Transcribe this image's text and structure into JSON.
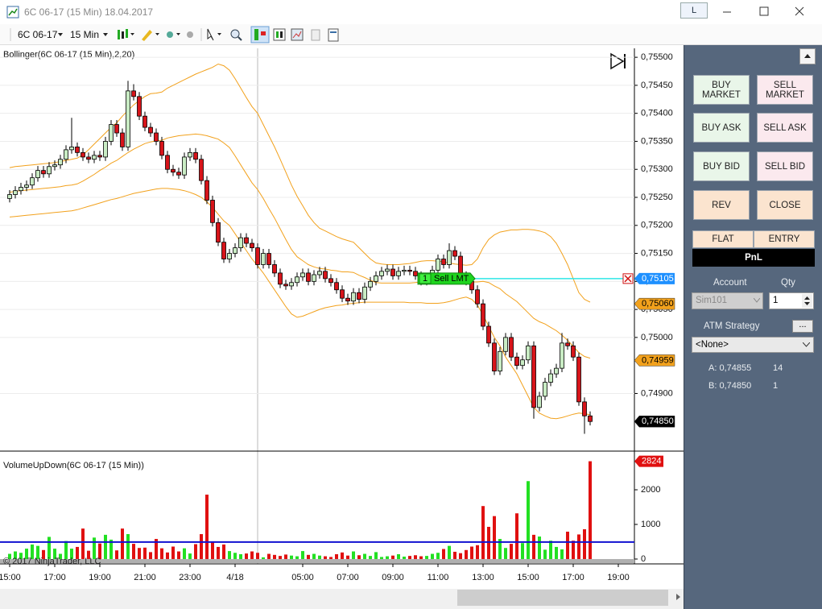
{
  "window": {
    "title": "6C 06-17 (15 Min)",
    "date": "18.04.2017",
    "link_button": "L"
  },
  "toolbar": {
    "instrument": "6C 06-17",
    "interval": "15 Min"
  },
  "copyright": "© 2017 NinjaTrader, LLC",
  "chart_data": [
    {
      "type": "candlestick",
      "title": "Bollinger(6C 06-17 (15 Min),2,20)",
      "up_color": "#c9ecc4",
      "down_color": "#d7141a",
      "band_color": "#f2a11c",
      "grid": true,
      "xlim": [
        -1.714,
        110.857
      ],
      "ylim": [
        0.748,
        0.75516
      ],
      "yticks": [
        {
          "value": 0.755,
          "label": "0,75500"
        },
        {
          "value": 0.7545,
          "label": "0,75450"
        },
        {
          "value": 0.754,
          "label": "0,75400"
        },
        {
          "value": 0.7535,
          "label": "0,75350"
        },
        {
          "value": 0.753,
          "label": "0,75300"
        },
        {
          "value": 0.7525,
          "label": "0,75250"
        },
        {
          "value": 0.752,
          "label": "0,75200"
        },
        {
          "value": 0.7515,
          "label": "0,75150"
        },
        {
          "value": 0.751,
          "label": "0,75100"
        },
        {
          "value": 0.7505,
          "label": "0,75050"
        },
        {
          "value": 0.75,
          "label": "0,75000"
        },
        {
          "value": 0.749,
          "label": "0,74900"
        }
      ],
      "open": [
        0.75248,
        0.75255,
        0.75262,
        0.75268,
        0.75272,
        0.75285,
        0.75298,
        0.75292,
        0.75305,
        0.75308,
        0.75318,
        0.75335,
        0.7534,
        0.7533,
        0.75322,
        0.75318,
        0.75325,
        0.75322,
        0.7535,
        0.7538,
        0.75365,
        0.7534,
        0.7544,
        0.7543,
        0.75395,
        0.75375,
        0.75365,
        0.7535,
        0.75325,
        0.753,
        0.75295,
        0.7529,
        0.75322,
        0.7533,
        0.75318,
        0.7528,
        0.75245,
        0.75205,
        0.7517,
        0.7514,
        0.7515,
        0.7516,
        0.75178,
        0.75168,
        0.7516,
        0.7513,
        0.7515,
        0.7513,
        0.75115,
        0.75095,
        0.75092,
        0.75098,
        0.75108,
        0.75115,
        0.751,
        0.75112,
        0.75118,
        0.75105,
        0.75098,
        0.75085,
        0.7507,
        0.75065,
        0.7508,
        0.75068,
        0.7509,
        0.751,
        0.7511,
        0.75118,
        0.75122,
        0.7511,
        0.75118,
        0.7512,
        0.75118,
        0.7511,
        0.751,
        0.75105,
        0.7512,
        0.7514,
        0.7513,
        0.75155,
        0.75145,
        0.7511,
        0.751,
        0.75085,
        0.7506,
        0.7502,
        0.7499,
        0.7494,
        0.74975,
        0.75,
        0.74965,
        0.7495,
        0.7496,
        0.74985,
        0.74875,
        0.74895,
        0.7492,
        0.74935,
        0.74945,
        0.7499,
        0.74985,
        0.74965,
        0.74885,
        0.7486
      ],
      "high": [
        0.75263,
        0.7527,
        0.75276,
        0.7528,
        0.75293,
        0.75306,
        0.75306,
        0.75313,
        0.75316,
        0.75326,
        0.75343,
        0.75392,
        0.75348,
        0.75338,
        0.7533,
        0.75333,
        0.75333,
        0.75358,
        0.75388,
        0.75388,
        0.75373,
        0.75458,
        0.75452,
        0.75438,
        0.75403,
        0.75383,
        0.75373,
        0.75358,
        0.75333,
        0.75308,
        0.75303,
        0.7533,
        0.75338,
        0.75338,
        0.75326,
        0.75288,
        0.75253,
        0.75213,
        0.75178,
        0.75158,
        0.75168,
        0.75186,
        0.75186,
        0.75176,
        0.75168,
        0.75158,
        0.75158,
        0.75138,
        0.75123,
        0.75103,
        0.75106,
        0.75116,
        0.75123,
        0.75123,
        0.7512,
        0.75126,
        0.75126,
        0.75113,
        0.75106,
        0.75093,
        0.75078,
        0.75088,
        0.75088,
        0.75098,
        0.75108,
        0.75118,
        0.75126,
        0.7513,
        0.7513,
        0.75126,
        0.75128,
        0.75128,
        0.75126,
        0.75118,
        0.75113,
        0.75128,
        0.75148,
        0.75148,
        0.75168,
        0.75163,
        0.75153,
        0.75118,
        0.75108,
        0.75093,
        0.75068,
        0.75028,
        0.74998,
        0.74983,
        0.75008,
        0.75008,
        0.74973,
        0.74968,
        0.74993,
        0.74993,
        0.74903,
        0.74928,
        0.74943,
        0.74953,
        0.75008,
        0.74998,
        0.74993,
        0.74973,
        0.74893,
        0.74868
      ],
      "low": [
        0.75241,
        0.75248,
        0.75255,
        0.75261,
        0.75265,
        0.75278,
        0.75285,
        0.75285,
        0.75298,
        0.75301,
        0.75311,
        0.75328,
        0.75323,
        0.75315,
        0.75311,
        0.75311,
        0.75315,
        0.75315,
        0.75343,
        0.75358,
        0.75333,
        0.75333,
        0.75423,
        0.75388,
        0.75368,
        0.75358,
        0.75343,
        0.75318,
        0.75293,
        0.75288,
        0.75283,
        0.75283,
        0.75315,
        0.75311,
        0.75273,
        0.75238,
        0.75198,
        0.75163,
        0.75133,
        0.75133,
        0.75143,
        0.75153,
        0.75161,
        0.75153,
        0.75123,
        0.75123,
        0.75123,
        0.75108,
        0.75088,
        0.75085,
        0.75085,
        0.75091,
        0.75101,
        0.75093,
        0.75093,
        0.75105,
        0.75098,
        0.75091,
        0.75078,
        0.75063,
        0.75058,
        0.75058,
        0.75061,
        0.75061,
        0.75083,
        0.75093,
        0.75103,
        0.75111,
        0.75103,
        0.75103,
        0.75111,
        0.75111,
        0.75103,
        0.75093,
        0.75093,
        0.75098,
        0.75113,
        0.75123,
        0.75123,
        0.75138,
        0.75103,
        0.75093,
        0.75078,
        0.75053,
        0.75013,
        0.74983,
        0.74933,
        0.74933,
        0.74968,
        0.74958,
        0.74943,
        0.74943,
        0.74953,
        0.74855,
        0.74868,
        0.74888,
        0.74913,
        0.74928,
        0.74938,
        0.74978,
        0.74958,
        0.74878,
        0.74828,
        0.74843
      ],
      "close": [
        0.75255,
        0.75262,
        0.75268,
        0.75272,
        0.75285,
        0.75298,
        0.75292,
        0.75305,
        0.75308,
        0.75318,
        0.75335,
        0.7534,
        0.7533,
        0.75322,
        0.75318,
        0.75325,
        0.75322,
        0.7535,
        0.7538,
        0.75365,
        0.7534,
        0.7544,
        0.7543,
        0.75395,
        0.75375,
        0.75365,
        0.7535,
        0.75325,
        0.753,
        0.75295,
        0.7529,
        0.75322,
        0.7533,
        0.75318,
        0.7528,
        0.75245,
        0.75205,
        0.7517,
        0.7514,
        0.7515,
        0.7516,
        0.75178,
        0.75168,
        0.7516,
        0.7513,
        0.7515,
        0.7513,
        0.75115,
        0.75095,
        0.75092,
        0.75098,
        0.75108,
        0.75115,
        0.751,
        0.75112,
        0.75118,
        0.75105,
        0.75098,
        0.75085,
        0.7507,
        0.75065,
        0.7508,
        0.75068,
        0.7509,
        0.751,
        0.7511,
        0.75118,
        0.75122,
        0.7511,
        0.75118,
        0.7512,
        0.75118,
        0.7511,
        0.751,
        0.75105,
        0.7512,
        0.7514,
        0.7513,
        0.75155,
        0.75145,
        0.7511,
        0.751,
        0.75085,
        0.7506,
        0.7502,
        0.7499,
        0.7494,
        0.74975,
        0.75,
        0.74965,
        0.7495,
        0.7496,
        0.74985,
        0.74875,
        0.74895,
        0.7492,
        0.74935,
        0.74945,
        0.7499,
        0.74985,
        0.74965,
        0.74885,
        0.7486,
        0.7485
      ],
      "upper": [
        0.75303,
        0.75305,
        0.75306,
        0.75307,
        0.75308,
        0.75309,
        0.7531,
        0.75311,
        0.75312,
        0.75314,
        0.75316,
        0.75318,
        0.7532,
        0.75326,
        0.75335,
        0.75345,
        0.75355,
        0.75365,
        0.75375,
        0.75383,
        0.75395,
        0.75405,
        0.75415,
        0.75423,
        0.7543,
        0.75435,
        0.75436,
        0.75438,
        0.75445,
        0.7545,
        0.75455,
        0.7546,
        0.75465,
        0.7547,
        0.75474,
        0.75478,
        0.75482,
        0.75488,
        0.75485,
        0.75477,
        0.75462,
        0.75445,
        0.75428,
        0.75412,
        0.754,
        0.7538,
        0.7536,
        0.7534,
        0.75318,
        0.75295,
        0.75272,
        0.75252,
        0.75235,
        0.75218,
        0.75205,
        0.75195,
        0.7519,
        0.75185,
        0.7518,
        0.75176,
        0.75173,
        0.7517,
        0.7516,
        0.7515,
        0.7514,
        0.75133,
        0.75131,
        0.7513,
        0.7513,
        0.7513,
        0.75131,
        0.75132,
        0.75134,
        0.75136,
        0.75137,
        0.75137,
        0.75136,
        0.75135,
        0.75133,
        0.75131,
        0.7513,
        0.75129,
        0.7513,
        0.7514,
        0.7516,
        0.75175,
        0.75183,
        0.75188,
        0.7519,
        0.75192,
        0.75192,
        0.75193,
        0.75193,
        0.75192,
        0.7519,
        0.75187,
        0.7518,
        0.75168,
        0.7515,
        0.7513,
        0.75105,
        0.7508,
        0.75068,
        0.75063
      ],
      "middle": [
        0.75259,
        0.75261,
        0.75262,
        0.75263,
        0.75264,
        0.75265,
        0.75266,
        0.75267,
        0.75268,
        0.75269,
        0.75271,
        0.75272,
        0.75274,
        0.75279,
        0.75285,
        0.75291,
        0.75298,
        0.75304,
        0.75311,
        0.75316,
        0.75323,
        0.7533,
        0.75336,
        0.75341,
        0.75346,
        0.75349,
        0.75351,
        0.75352,
        0.75356,
        0.75358,
        0.7536,
        0.75361,
        0.75362,
        0.75363,
        0.75362,
        0.7536,
        0.75357,
        0.75354,
        0.75347,
        0.75339,
        0.75324,
        0.75308,
        0.75292,
        0.75276,
        0.75264,
        0.75248,
        0.7523,
        0.75213,
        0.75194,
        0.75175,
        0.75157,
        0.75144,
        0.75137,
        0.7513,
        0.75126,
        0.75123,
        0.75122,
        0.7512,
        0.75119,
        0.75117,
        0.75117,
        0.75116,
        0.75111,
        0.75107,
        0.75102,
        0.75098,
        0.75097,
        0.75097,
        0.75097,
        0.75097,
        0.75097,
        0.75097,
        0.75098,
        0.75099,
        0.75099,
        0.75099,
        0.75099,
        0.75099,
        0.75099,
        0.75099,
        0.751,
        0.75101,
        0.75099,
        0.75099,
        0.751,
        0.75098,
        0.75092,
        0.75087,
        0.75078,
        0.75071,
        0.75064,
        0.75054,
        0.75044,
        0.75034,
        0.75028,
        0.75024,
        0.75018,
        0.75012,
        0.75004,
        0.74995,
        0.74984,
        0.74973,
        0.74966,
        0.74963
      ],
      "lower": [
        0.75215,
        0.75216,
        0.75217,
        0.75218,
        0.75219,
        0.7522,
        0.75221,
        0.75222,
        0.75223,
        0.75224,
        0.75225,
        0.75226,
        0.75228,
        0.75231,
        0.75234,
        0.75237,
        0.7524,
        0.75243,
        0.75246,
        0.75248,
        0.75251,
        0.75254,
        0.75257,
        0.75259,
        0.75261,
        0.75263,
        0.75265,
        0.75266,
        0.75266,
        0.75265,
        0.75264,
        0.75262,
        0.75259,
        0.75255,
        0.7525,
        0.75242,
        0.75232,
        0.7522,
        0.75208,
        0.752,
        0.75185,
        0.7517,
        0.75155,
        0.7514,
        0.75128,
        0.75115,
        0.751,
        0.75085,
        0.7507,
        0.75055,
        0.75042,
        0.75036,
        0.75038,
        0.75042,
        0.75046,
        0.7505,
        0.75053,
        0.75055,
        0.75057,
        0.75058,
        0.7506,
        0.75061,
        0.75062,
        0.75063,
        0.75063,
        0.75063,
        0.75063,
        0.75063,
        0.75063,
        0.75063,
        0.75063,
        0.75062,
        0.75062,
        0.75062,
        0.75061,
        0.75061,
        0.75061,
        0.75062,
        0.75064,
        0.75067,
        0.7507,
        0.75072,
        0.75068,
        0.75058,
        0.7504,
        0.7502,
        0.75,
        0.74985,
        0.74965,
        0.7495,
        0.74935,
        0.74915,
        0.74895,
        0.74875,
        0.74865,
        0.7486,
        0.74856,
        0.74855,
        0.74857,
        0.7486,
        0.74863,
        0.74865,
        0.74864,
        0.74862
      ],
      "order": {
        "quantity": 1,
        "label": "Sell LMT",
        "value": 0.75105,
        "value_label": "0,75105",
        "color": "#1ed41e",
        "line_color": "#2ee6e6",
        "flag_color": "#1e90ff"
      },
      "price_markers": [
        {
          "value": 0.7506,
          "label": "0,75060",
          "color": "#f2a11c",
          "text_color": "#000000"
        },
        {
          "value": 0.74959,
          "label": "0,74959",
          "color": "#f2a11c",
          "text_color": "#000000"
        },
        {
          "value": 0.7485,
          "label": "0,74850",
          "color": "#000000",
          "text_color": "#ffffff"
        }
      ]
    },
    {
      "type": "bar",
      "title": "VolumeUpDown(6C 06-17 (15 Min))",
      "up_color": "#22e022",
      "down_color": "#e01010",
      "average_color": "#1010d0",
      "average": 490,
      "last_color": "#e01010",
      "xlim": [
        -1.714,
        110.857
      ],
      "ylim": [
        -140,
        3070
      ],
      "yticks": [
        0,
        1000,
        2000
      ],
      "xticks": [
        {
          "value": 0,
          "label": "15:00"
        },
        {
          "value": 8,
          "label": "17:00"
        },
        {
          "value": 16,
          "label": "19:00"
        },
        {
          "value": 24,
          "label": "21:00"
        },
        {
          "value": 32,
          "label": "23:00"
        },
        {
          "value": 40,
          "label": "4/18"
        },
        {
          "value": 52,
          "label": "05:00"
        },
        {
          "value": 60,
          "label": "07:00"
        },
        {
          "value": 68,
          "label": "09:00"
        },
        {
          "value": 76,
          "label": "11:00"
        },
        {
          "value": 84,
          "label": "13:00"
        },
        {
          "value": 92,
          "label": "15:00"
        },
        {
          "value": 100,
          "label": "17:00"
        },
        {
          "value": 108,
          "label": "19:00"
        }
      ],
      "values": [
        150,
        220,
        180,
        300,
        420,
        380,
        260,
        640,
        300,
        150,
        520,
        300,
        350,
        880,
        240,
        620,
        450,
        700,
        560,
        250,
        880,
        720,
        440,
        320,
        330,
        200,
        580,
        310,
        190,
        360,
        220,
        310,
        160,
        430,
        720,
        1860,
        480,
        350,
        420,
        230,
        180,
        140,
        160,
        220,
        180,
        50,
        150,
        120,
        90,
        130,
        100,
        80,
        230,
        120,
        150,
        100,
        80,
        60,
        140,
        190,
        100,
        220,
        110,
        150,
        90,
        200,
        60,
        80,
        100,
        140,
        70,
        90,
        110,
        80,
        90,
        150,
        180,
        290,
        380,
        210,
        170,
        260,
        360,
        400,
        1530,
        930,
        1240,
        580,
        320,
        440,
        1320,
        460,
        2250,
        700,
        650,
        270,
        530,
        350,
        280,
        790,
        530,
        710,
        860,
        2824
      ]
    }
  ],
  "order_panel": {
    "buttons": [
      "BUY MARKET",
      "SELL MARKET",
      "BUY ASK",
      "SELL ASK",
      "BUY BID",
      "SELL BID",
      "REV",
      "CLOSE"
    ],
    "tabs": [
      "FLAT",
      "ENTRY"
    ],
    "pnl": "PnL",
    "account_label": "Account",
    "qty_label": "Qty",
    "account": "Sim101",
    "qty": 1,
    "atm_label": "ATM Strategy",
    "atm_button": "...",
    "atm": "<None>",
    "ask": {
      "label": "A: 0,74855",
      "size": 14
    },
    "bid": {
      "label": "B: 0,74850",
      "size": 1
    }
  }
}
